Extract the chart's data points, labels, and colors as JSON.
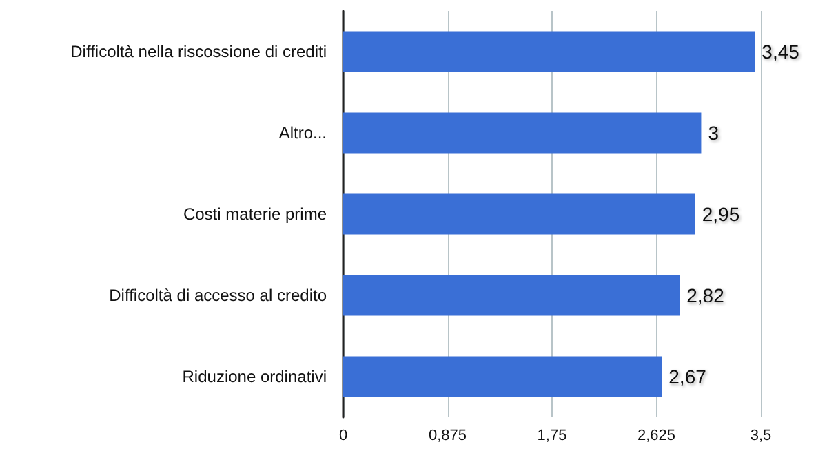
{
  "chart_data": {
    "type": "bar",
    "orientation": "horizontal",
    "categories": [
      "Difficoltà nella riscossione di crediti",
      "Altro...",
      "Costi materie prime",
      "Difficoltà di accesso al credito",
      "Riduzione ordinativi"
    ],
    "values": [
      3.45,
      3,
      2.95,
      2.82,
      2.67
    ],
    "value_labels": [
      "3,45",
      "3",
      "2,95",
      "2,82",
      "2,67"
    ],
    "color": "#3a6fd6",
    "xlim": [
      0,
      3.5
    ],
    "xticks": [
      0,
      {
        "value": 0.875,
        "label": "0,875"
      },
      {
        "value": 1.75,
        "label": "1,75"
      },
      {
        "value": 2.625,
        "label": "2,625"
      },
      {
        "value": 3.5,
        "label": "3,5"
      }
    ],
    "grid": "x"
  }
}
